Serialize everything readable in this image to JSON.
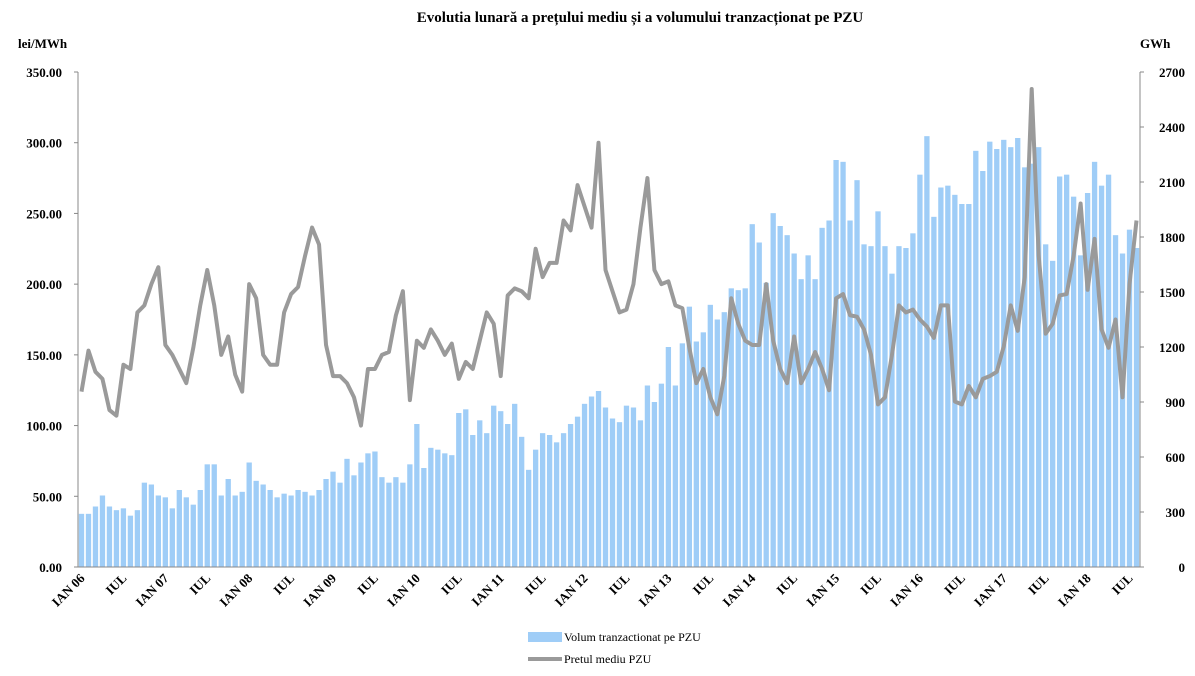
{
  "chart_data": {
    "type": "combo",
    "title": "Evolutia lunară a prețului mediu și a volumului tranzacționat pe PZU",
    "y_label": "lei/MWh",
    "y2_label": "GWh",
    "categories": [
      "IAN 06",
      null,
      null,
      null,
      null,
      null,
      "IUL",
      null,
      null,
      null,
      null,
      null,
      "IAN 07",
      null,
      null,
      null,
      null,
      null,
      "IUL",
      null,
      null,
      null,
      null,
      null,
      "IAN 08",
      null,
      null,
      null,
      null,
      null,
      "IUL",
      null,
      null,
      null,
      null,
      null,
      "IAN 09",
      null,
      null,
      null,
      null,
      null,
      "IUL",
      null,
      null,
      null,
      null,
      null,
      "IAN 10",
      null,
      null,
      null,
      null,
      null,
      "IUL",
      null,
      null,
      null,
      null,
      null,
      "IAN 11",
      null,
      null,
      null,
      null,
      null,
      "IUL",
      null,
      null,
      null,
      null,
      null,
      "IAN 12",
      null,
      null,
      null,
      null,
      null,
      "IUL",
      null,
      null,
      null,
      null,
      null,
      "IAN 13",
      null,
      null,
      null,
      null,
      null,
      "IUL",
      null,
      null,
      null,
      null,
      null,
      "IAN 14",
      null,
      null,
      null,
      null,
      null,
      "IUL",
      null,
      null,
      null,
      null,
      null,
      "IAN 15",
      null,
      null,
      null,
      null,
      null,
      "IUL",
      null,
      null,
      null,
      null,
      null,
      "IAN 16",
      null,
      null,
      null,
      null,
      null,
      "IUL",
      null,
      null,
      null,
      null,
      null,
      "IAN 17",
      null,
      null,
      null,
      null,
      null,
      "IUL",
      null,
      null,
      null,
      null,
      null,
      "IAN 18",
      null,
      null,
      null,
      null,
      null,
      "IUL",
      null
    ],
    "series": [
      {
        "name": "Volum tranzactionat pe PZU",
        "type": "bar",
        "axis": "y2",
        "color": "#9fcdf7",
        "values": [
          290,
          290,
          330,
          390,
          330,
          310,
          320,
          280,
          310,
          460,
          450,
          390,
          380,
          320,
          420,
          380,
          340,
          420,
          560,
          560,
          390,
          480,
          390,
          410,
          570,
          470,
          450,
          420,
          380,
          400,
          390,
          420,
          410,
          390,
          420,
          480,
          520,
          460,
          590,
          500,
          570,
          620,
          630,
          490,
          460,
          490,
          460,
          560,
          780,
          540,
          650,
          640,
          620,
          610,
          840,
          860,
          720,
          800,
          730,
          880,
          850,
          780,
          890,
          710,
          530,
          640,
          730,
          720,
          680,
          730,
          780,
          820,
          890,
          930,
          960,
          870,
          810,
          790,
          880,
          870,
          800,
          990,
          900,
          1000,
          1200,
          990,
          1220,
          1420,
          1230,
          1280,
          1430,
          1350,
          1390,
          1520,
          1510,
          1520,
          1870,
          1770,
          1550,
          1930,
          1860,
          1810,
          1710,
          1570,
          1700,
          1570,
          1850,
          1890,
          2220,
          2210,
          1890,
          2110,
          1760,
          1750,
          1940,
          1750,
          1600,
          1750,
          1740,
          1820,
          2140,
          2350,
          1910,
          2070,
          2080,
          2030,
          1980,
          1980,
          2270,
          2160,
          2320,
          2280,
          2330,
          2290,
          2340,
          2180,
          2200,
          2290,
          1760,
          1670,
          2130,
          2140,
          2020,
          1700,
          2040,
          2210,
          2080,
          2140,
          1810,
          1710,
          1840,
          1740
        ]
      },
      {
        "name": "Pretul mediu PZU",
        "type": "line",
        "axis": "y",
        "color": "#9a9a9a",
        "values": [
          124,
          153,
          138,
          133,
          111,
          107,
          143,
          140,
          180,
          185,
          200,
          212,
          157,
          150,
          140,
          130,
          155,
          185,
          210,
          185,
          150,
          163,
          136,
          124,
          200,
          190,
          150,
          143,
          143,
          180,
          193,
          198,
          220,
          240,
          228,
          157,
          135,
          135,
          130,
          120,
          100,
          140,
          140,
          150,
          152,
          178,
          195,
          118,
          160,
          155,
          168,
          160,
          150,
          158,
          133,
          145,
          140,
          160,
          180,
          172,
          135,
          192,
          197,
          195,
          190,
          225,
          205,
          215,
          215,
          245,
          238,
          270,
          255,
          240,
          300,
          210,
          195,
          180,
          182,
          200,
          240,
          275,
          210,
          200,
          202,
          185,
          183,
          155,
          130,
          140,
          120,
          108,
          135,
          190,
          172,
          160,
          157,
          157,
          200,
          160,
          140,
          130,
          163,
          130,
          140,
          152,
          140,
          125,
          190,
          193,
          178,
          177,
          168,
          150,
          115,
          120,
          150,
          185,
          180,
          182,
          175,
          170,
          162,
          185,
          185,
          117,
          115,
          128,
          120,
          133,
          135,
          138,
          156,
          185,
          167,
          205,
          338,
          220,
          165,
          172,
          192,
          193,
          220,
          257,
          196,
          232,
          168,
          155,
          175,
          120,
          200,
          245
        ]
      }
    ],
    "ylim": [
      0,
      350
    ],
    "yticks": [
      {
        "value": 0,
        "label": "0.00"
      },
      {
        "value": 50,
        "label": "50.00"
      },
      {
        "value": 100,
        "label": "100.00"
      },
      {
        "value": 150,
        "label": "150.00"
      },
      {
        "value": 200,
        "label": "200.00"
      },
      {
        "value": 250,
        "label": "250.00"
      },
      {
        "value": 300,
        "label": "300.00"
      },
      {
        "value": 350,
        "label": "350.00"
      }
    ],
    "y2lim": [
      0,
      2700
    ],
    "y2ticks": [
      0,
      300,
      600,
      900,
      1200,
      1500,
      1800,
      2100,
      2400,
      2700
    ],
    "legend": "bottom"
  }
}
